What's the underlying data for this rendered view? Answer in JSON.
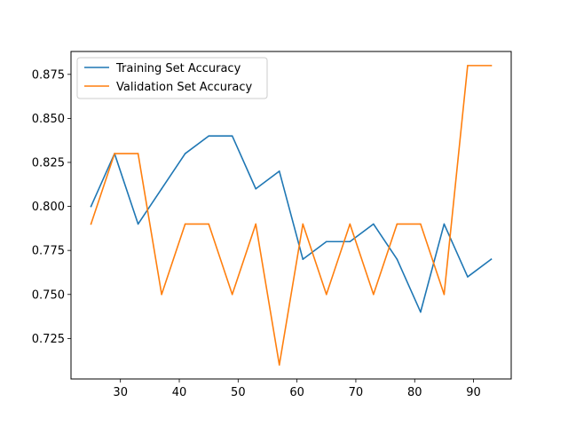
{
  "chart_data": {
    "type": "line",
    "title": "",
    "xlabel": "",
    "ylabel": "",
    "xlim": [
      21.6,
      96.4
    ],
    "ylim": [
      0.702,
      0.888
    ],
    "xticks": [
      30,
      40,
      50,
      60,
      70,
      80,
      90
    ],
    "yticks": [
      0.725,
      0.75,
      0.775,
      0.8,
      0.825,
      0.85,
      0.875
    ],
    "xtick_labels": [
      "30",
      "40",
      "50",
      "60",
      "70",
      "80",
      "90"
    ],
    "ytick_labels": [
      "0.725",
      "0.750",
      "0.775",
      "0.800",
      "0.825",
      "0.850",
      "0.875"
    ],
    "grid": false,
    "legend_position": "upper-left",
    "x": [
      25,
      29,
      33,
      37,
      41,
      45,
      49,
      53,
      57,
      61,
      65,
      69,
      73,
      77,
      81,
      85,
      89,
      93
    ],
    "series": [
      {
        "name": "Training Set Accuracy",
        "color": "#1f77b4",
        "values": [
          0.8,
          0.83,
          0.79,
          0.81,
          0.83,
          0.84,
          0.84,
          0.81,
          0.82,
          0.77,
          0.78,
          0.78,
          0.79,
          0.77,
          0.74,
          0.79,
          0.76,
          0.77
        ]
      },
      {
        "name": "Validation Set Accuracy",
        "color": "#ff7f0e",
        "values": [
          0.79,
          0.83,
          0.83,
          0.75,
          0.79,
          0.79,
          0.75,
          0.79,
          0.71,
          0.79,
          0.75,
          0.79,
          0.75,
          0.79,
          0.79,
          0.75,
          0.88,
          0.88
        ]
      }
    ]
  }
}
